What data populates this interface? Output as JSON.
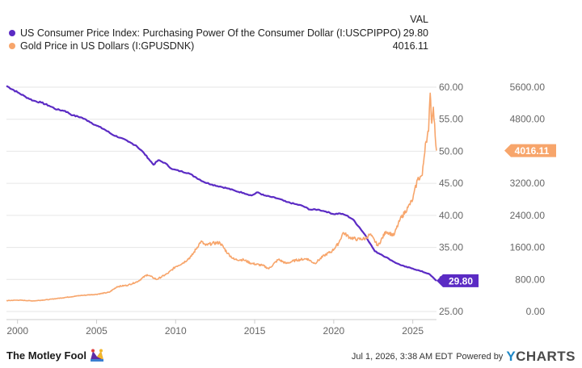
{
  "legend": {
    "header": "VAL",
    "items": [
      {
        "label": "US Consumer Price Index: Purchasing Power Of the Consumer Dollar (I:USCPIPPO)",
        "value": "29.80",
        "color": "#5b2bc4"
      },
      {
        "label": "Gold Price in US Dollars (I:GPUSDNK)",
        "value": "4016.11",
        "color": "#f7a56b"
      }
    ]
  },
  "chart_data": {
    "type": "line",
    "x_ticks": [
      "2000",
      "2005",
      "2010",
      "2015",
      "2020",
      "2025"
    ],
    "y_left_ticks": [
      "25.00",
      "30.00",
      "35.00",
      "40.00",
      "45.00",
      "50.00",
      "55.00",
      "60.00"
    ],
    "y_right_ticks": [
      "0.00",
      "800.00",
      "1600.00",
      "2400.00",
      "3200.00",
      "4000.00",
      "4800.00",
      "5600.00"
    ],
    "y_left_range": [
      25,
      60
    ],
    "y_right_range": [
      0,
      5600
    ],
    "x_range": [
      1999.3,
      2026.5
    ],
    "grid": "horizontal",
    "series": [
      {
        "name": "US Consumer Price Index: Purchasing Power Of the Consumer Dollar (I:USCPIPPO)",
        "axis": "left",
        "color": "#5b2bc4",
        "points": [
          [
            1999.3,
            60.2
          ],
          [
            2000.0,
            59.2
          ],
          [
            2000.5,
            58.5
          ],
          [
            2001.0,
            57.9
          ],
          [
            2001.5,
            57.6
          ],
          [
            2002.0,
            57.1
          ],
          [
            2002.5,
            56.5
          ],
          [
            2003.0,
            56.3
          ],
          [
            2003.5,
            55.6
          ],
          [
            2004.0,
            55.3
          ],
          [
            2004.5,
            54.7
          ],
          [
            2005.0,
            54.0
          ],
          [
            2005.5,
            53.4
          ],
          [
            2006.0,
            52.6
          ],
          [
            2006.5,
            52.1
          ],
          [
            2007.0,
            51.5
          ],
          [
            2007.5,
            50.9
          ],
          [
            2008.0,
            49.7
          ],
          [
            2008.3,
            48.8
          ],
          [
            2008.6,
            47.9
          ],
          [
            2008.9,
            48.6
          ],
          [
            2009.3,
            48.2
          ],
          [
            2009.8,
            47.2
          ],
          [
            2010.3,
            46.9
          ],
          [
            2010.8,
            46.6
          ],
          [
            2011.3,
            45.9
          ],
          [
            2011.8,
            45.2
          ],
          [
            2012.3,
            44.8
          ],
          [
            2012.8,
            44.5
          ],
          [
            2013.3,
            44.2
          ],
          [
            2013.8,
            43.8
          ],
          [
            2014.3,
            43.5
          ],
          [
            2014.8,
            43.1
          ],
          [
            2015.2,
            43.6
          ],
          [
            2015.6,
            43.1
          ],
          [
            2016.0,
            42.9
          ],
          [
            2016.5,
            42.6
          ],
          [
            2017.0,
            42.1
          ],
          [
            2017.5,
            41.8
          ],
          [
            2018.0,
            41.5
          ],
          [
            2018.5,
            40.9
          ],
          [
            2019.0,
            40.9
          ],
          [
            2019.5,
            40.6
          ],
          [
            2020.0,
            40.2
          ],
          [
            2020.4,
            40.3
          ],
          [
            2020.8,
            40.0
          ],
          [
            2021.2,
            39.4
          ],
          [
            2021.6,
            38.2
          ],
          [
            2022.0,
            36.9
          ],
          [
            2022.3,
            35.6
          ],
          [
            2022.6,
            34.4
          ],
          [
            2023.0,
            33.9
          ],
          [
            2023.5,
            33.2
          ],
          [
            2024.0,
            32.5
          ],
          [
            2024.5,
            32.0
          ],
          [
            2025.0,
            31.7
          ],
          [
            2025.5,
            31.3
          ],
          [
            2026.0,
            30.9
          ],
          [
            2026.5,
            29.8
          ]
        ]
      },
      {
        "name": "Gold Price in US Dollars (I:GPUSDNK)",
        "axis": "right",
        "color": "#f7a56b",
        "points": [
          [
            1999.3,
            270
          ],
          [
            2000.0,
            285
          ],
          [
            2001.0,
            265
          ],
          [
            2002.0,
            300
          ],
          [
            2003.0,
            350
          ],
          [
            2004.0,
            400
          ],
          [
            2005.0,
            430
          ],
          [
            2005.8,
            480
          ],
          [
            2006.3,
            620
          ],
          [
            2007.0,
            660
          ],
          [
            2007.6,
            750
          ],
          [
            2008.2,
            920
          ],
          [
            2008.8,
            800
          ],
          [
            2009.5,
            950
          ],
          [
            2010.0,
            1120
          ],
          [
            2010.5,
            1220
          ],
          [
            2011.0,
            1380
          ],
          [
            2011.6,
            1750
          ],
          [
            2011.9,
            1650
          ],
          [
            2012.3,
            1700
          ],
          [
            2012.8,
            1720
          ],
          [
            2013.3,
            1450
          ],
          [
            2013.7,
            1300
          ],
          [
            2014.3,
            1290
          ],
          [
            2014.8,
            1200
          ],
          [
            2015.5,
            1150
          ],
          [
            2015.9,
            1070
          ],
          [
            2016.5,
            1300
          ],
          [
            2017.0,
            1200
          ],
          [
            2017.6,
            1280
          ],
          [
            2018.3,
            1320
          ],
          [
            2018.8,
            1200
          ],
          [
            2019.4,
            1400
          ],
          [
            2019.9,
            1510
          ],
          [
            2020.3,
            1700
          ],
          [
            2020.6,
            1970
          ],
          [
            2021.0,
            1850
          ],
          [
            2021.5,
            1800
          ],
          [
            2022.0,
            1820
          ],
          [
            2022.3,
            1930
          ],
          [
            2022.8,
            1640
          ],
          [
            2023.3,
            2000
          ],
          [
            2023.8,
            1900
          ],
          [
            2024.2,
            2300
          ],
          [
            2024.7,
            2600
          ],
          [
            2025.0,
            2800
          ],
          [
            2025.3,
            3300
          ],
          [
            2025.6,
            3400
          ],
          [
            2025.8,
            4200
          ],
          [
            2026.0,
            4500
          ],
          [
            2026.1,
            5450
          ],
          [
            2026.2,
            4700
          ],
          [
            2026.3,
            5100
          ],
          [
            2026.5,
            4016
          ]
        ]
      }
    ],
    "last_value_labels": {
      "left": "29.80",
      "right": "4016.11"
    }
  },
  "footer": {
    "brand": "The Motley Fool",
    "timestamp": "Jul 1, 2026, 3:38 AM EDT",
    "powered_by": "Powered by",
    "provider": "CHARTS",
    "provider_initial": "Y"
  }
}
